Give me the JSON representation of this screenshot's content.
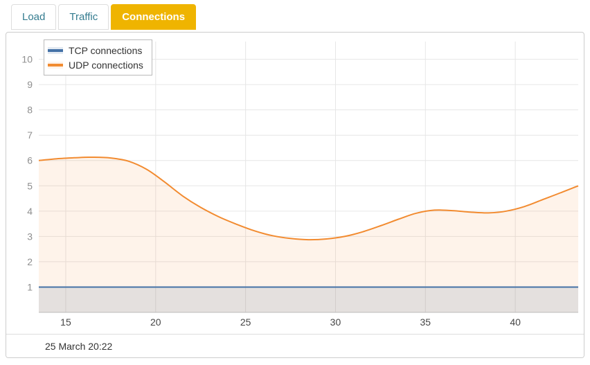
{
  "tabs": [
    {
      "label": "Load",
      "active": false
    },
    {
      "label": "Traffic",
      "active": false
    },
    {
      "label": "Connections",
      "active": true
    }
  ],
  "colors": {
    "active_tab_bg": "#efb400",
    "active_tab_text": "#ffffff",
    "inactive_tab_text": "#337b8f",
    "panel_border": "#cccccc",
    "grid": "#e6e6e6",
    "axis_line": "#bbbbbb"
  },
  "chart_data": {
    "type": "area",
    "title": "",
    "xlabel": "",
    "ylabel": "",
    "xlim": [
      13.5,
      43.5
    ],
    "ylim": [
      0,
      10.7
    ],
    "x_ticks": [
      15,
      20,
      25,
      30,
      35,
      40
    ],
    "y_ticks": [
      1,
      2,
      3,
      4,
      5,
      6,
      7,
      8,
      9,
      10
    ],
    "grid": true,
    "legend_position": "top-left",
    "caption": "25 March 20:22",
    "series": [
      {
        "name": "TCP connections",
        "color": "#4572a7",
        "fill": "rgba(69,114,167,0.15)",
        "points": [
          [
            13.5,
            1
          ],
          [
            43.5,
            1
          ]
        ]
      },
      {
        "name": "UDP connections",
        "color": "#f28b30",
        "fill": "rgba(242,139,48,0.10)",
        "points": [
          [
            13.5,
            6.0
          ],
          [
            14.5,
            6.07
          ],
          [
            15.5,
            6.11
          ],
          [
            16.5,
            6.13
          ],
          [
            17.5,
            6.1
          ],
          [
            18.5,
            5.97
          ],
          [
            19.5,
            5.65
          ],
          [
            20.5,
            5.15
          ],
          [
            21.5,
            4.6
          ],
          [
            22.5,
            4.15
          ],
          [
            23.5,
            3.78
          ],
          [
            24.5,
            3.48
          ],
          [
            25.5,
            3.22
          ],
          [
            26.5,
            3.03
          ],
          [
            27.5,
            2.92
          ],
          [
            28.5,
            2.87
          ],
          [
            29.5,
            2.9
          ],
          [
            30.5,
            3.0
          ],
          [
            31.5,
            3.18
          ],
          [
            32.5,
            3.42
          ],
          [
            33.5,
            3.68
          ],
          [
            34.5,
            3.92
          ],
          [
            35.5,
            4.04
          ],
          [
            36.5,
            4.02
          ],
          [
            37.5,
            3.96
          ],
          [
            38.5,
            3.93
          ],
          [
            39.5,
            4.0
          ],
          [
            40.5,
            4.18
          ],
          [
            41.5,
            4.45
          ],
          [
            42.5,
            4.72
          ],
          [
            43.5,
            5.0
          ]
        ]
      }
    ]
  }
}
